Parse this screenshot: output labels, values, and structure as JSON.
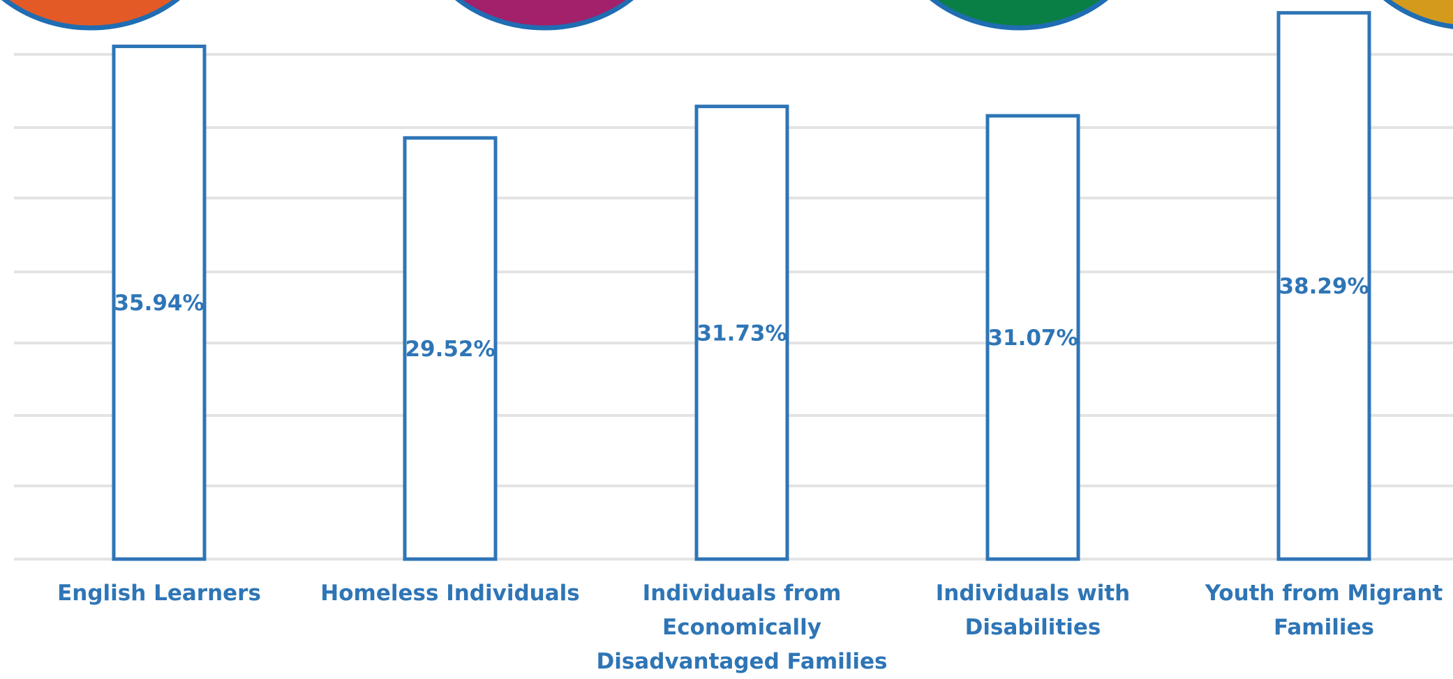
{
  "colors": {
    "bar_stroke": "#2e75b6",
    "bar_fill": "#ffffff",
    "label": "#2e75b6",
    "gridline": "#e3e3e3",
    "decor_orange": "#e35a26",
    "decor_magenta": "#a3206a",
    "decor_green": "#0a7f45",
    "decor_gold": "#d49a1c",
    "decor_ring": "#1f6db2"
  },
  "chart_data": {
    "type": "bar",
    "categories": [
      "English Learners",
      "Homeless Individuals",
      "Individuals from Economically Disadvantaged Families",
      "Individuals with Disabilities",
      "Youth from Migrant Families"
    ],
    "values": [
      35.94,
      29.52,
      31.73,
      31.07,
      38.29
    ],
    "data_labels": [
      "35.94%",
      "29.52%",
      "31.73%",
      "31.07%",
      "38.29%"
    ],
    "title": "",
    "xlabel": "",
    "ylabel": "",
    "ylim": [
      0,
      38.7
    ],
    "grid": true,
    "legend": "none"
  },
  "category_labels": [
    "English Learners",
    "Homeless Individuals",
    "Individuals from\nEconomically\nDisadvantaged Families",
    "Individuals with\nDisabilities",
    "Youth from Migrant\nFamilies"
  ]
}
